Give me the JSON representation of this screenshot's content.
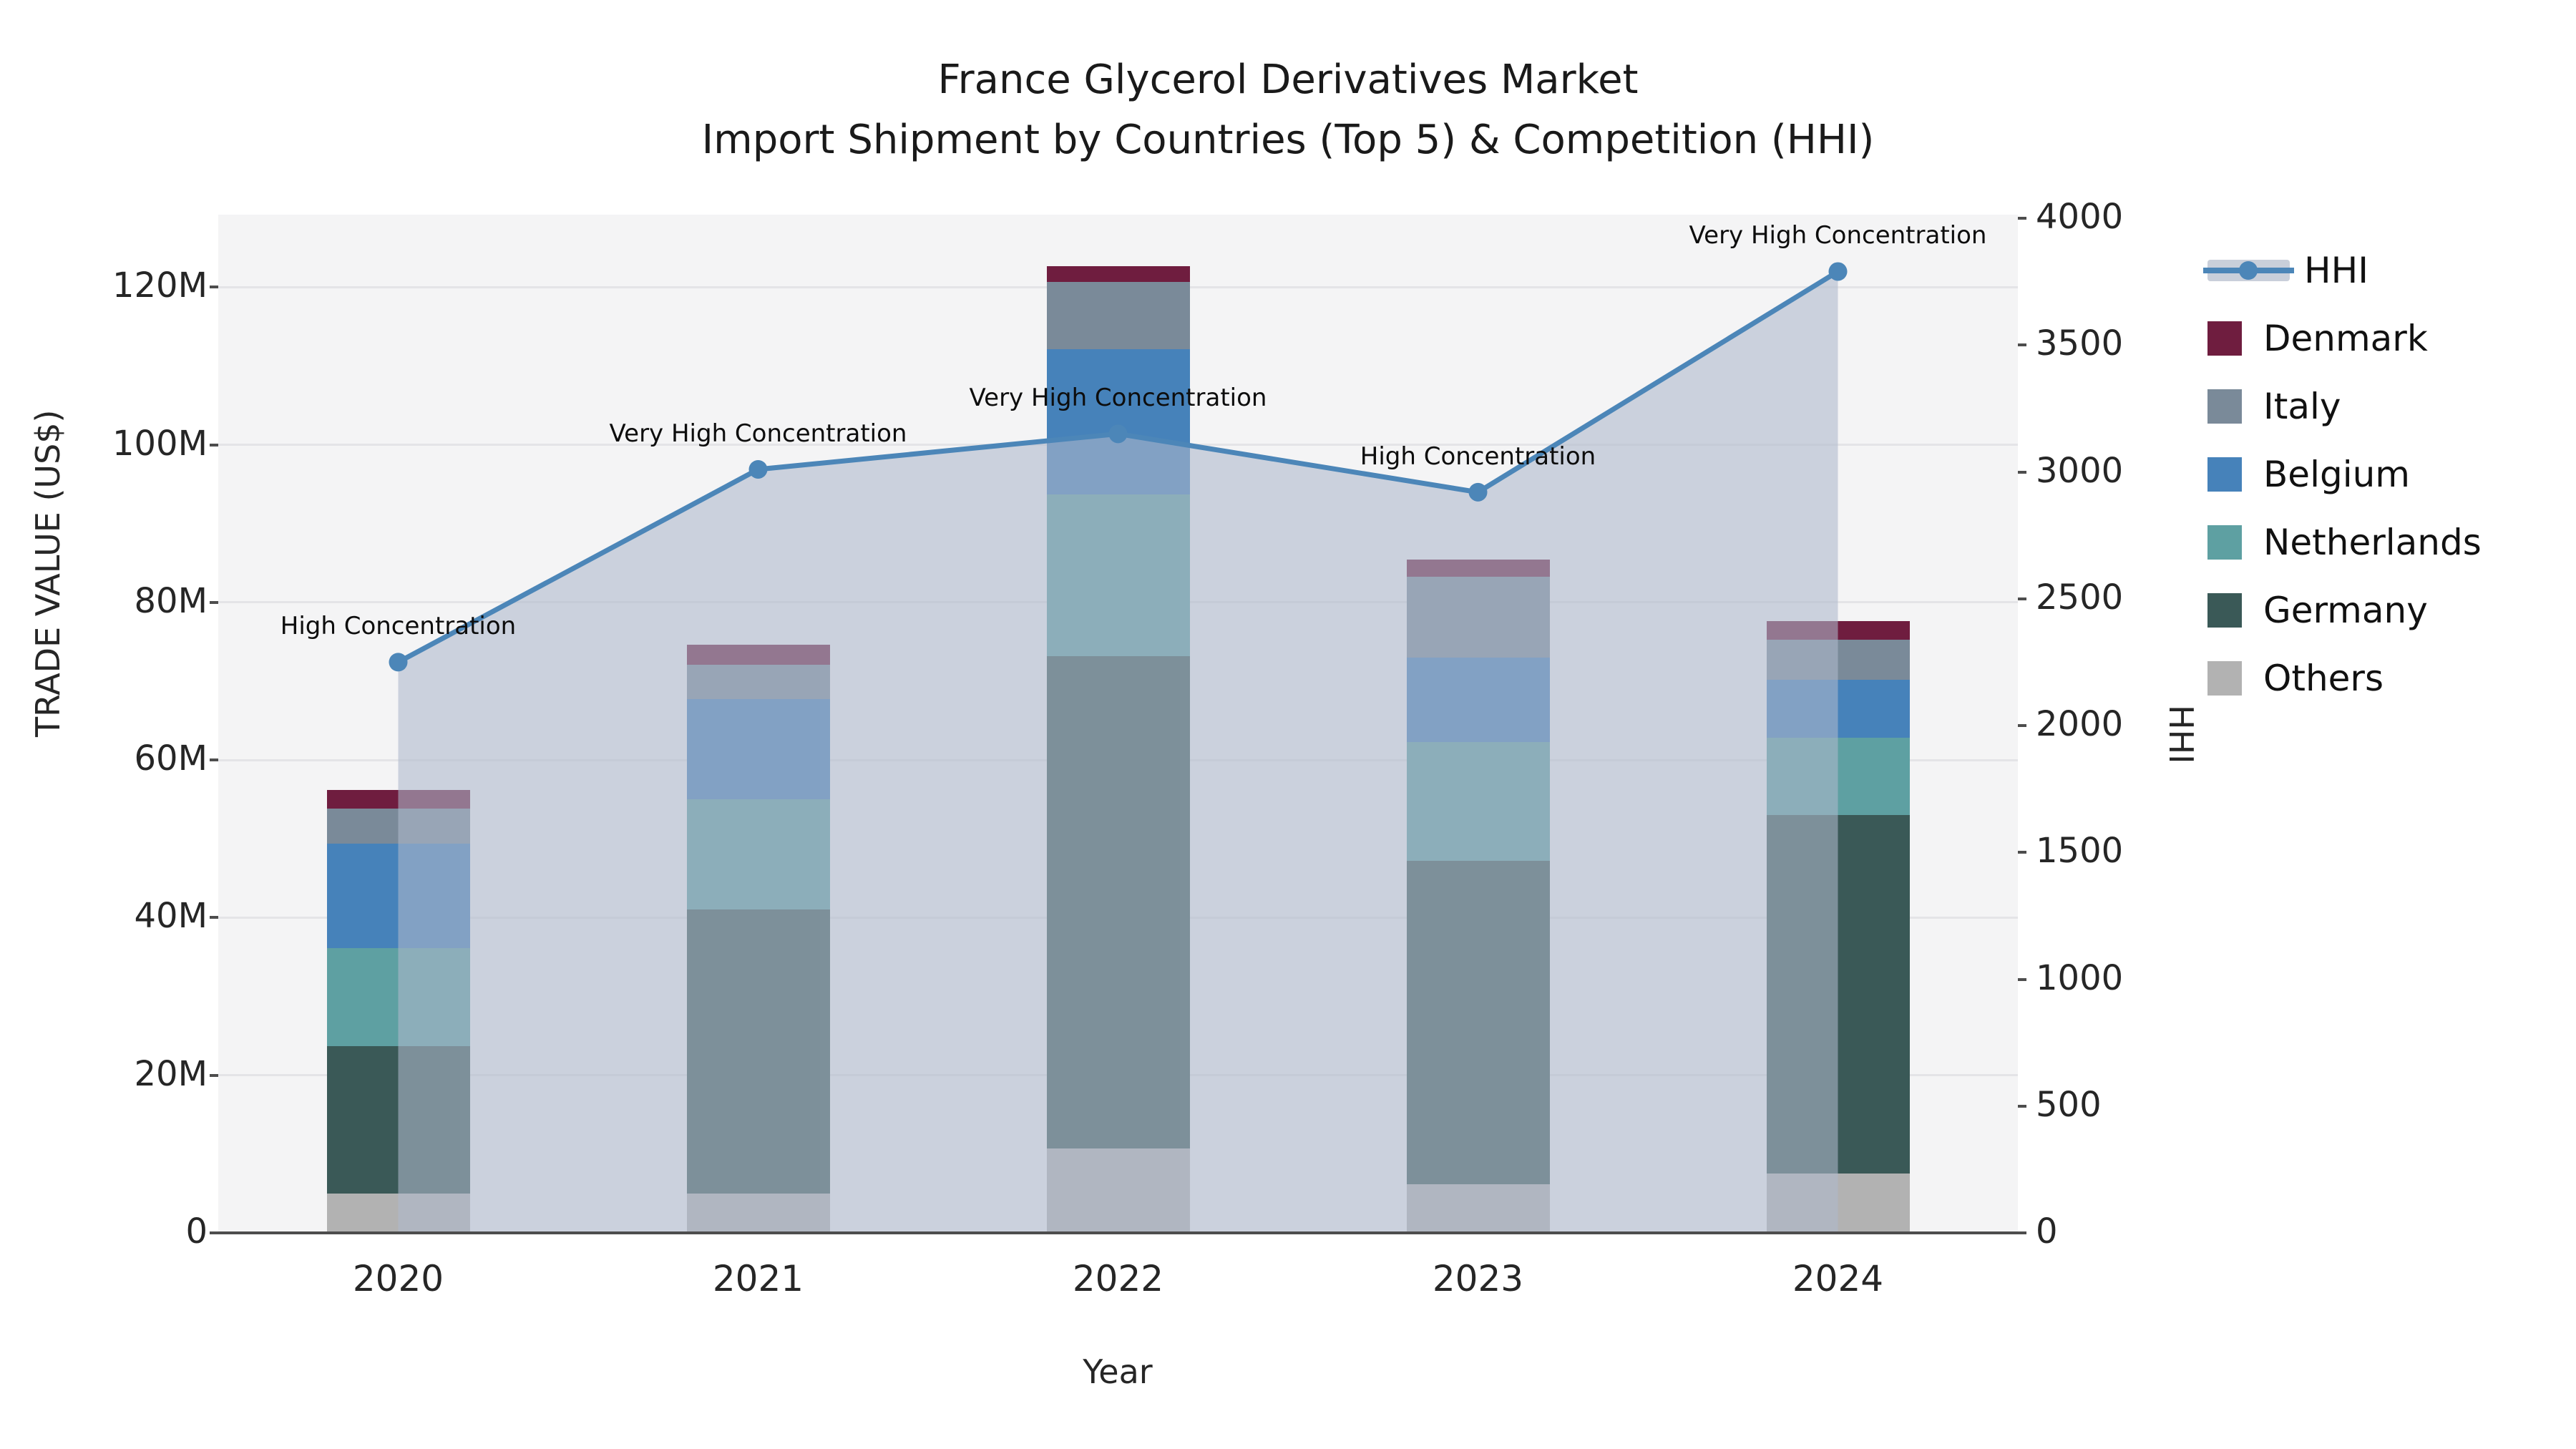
{
  "title": {
    "line1": "France Glycerol Derivatives Market",
    "line2": "Import Shipment by Countries (Top 5) & Competition (HHI)"
  },
  "axes": {
    "x_title": "Year",
    "y_left_title": "TRADE VALUE (US$)",
    "y_right_title": "HHI",
    "y_left_ticks": [
      "0",
      "20M",
      "40M",
      "60M",
      "80M",
      "100M",
      "120M"
    ],
    "y_left_tick_values_millions": [
      0,
      20,
      40,
      60,
      80,
      100,
      120
    ],
    "y_right_ticks": [
      "0",
      "500",
      "1000",
      "1500",
      "2000",
      "2500",
      "3000",
      "3500",
      "4000"
    ],
    "y_right_tick_values": [
      0,
      500,
      1000,
      1500,
      2000,
      2500,
      3000,
      3500,
      4000
    ]
  },
  "chart_data": {
    "type": "bar+line",
    "categories": [
      "2020",
      "2021",
      "2022",
      "2023",
      "2024"
    ],
    "stack_order_bottom_to_top": [
      "Others",
      "Germany",
      "Netherlands",
      "Belgium",
      "Italy",
      "Denmark"
    ],
    "series": [
      {
        "name": "Others",
        "values_millions_usd": [
          5.0,
          5.0,
          10.7,
          6.2,
          7.5
        ]
      },
      {
        "name": "Germany",
        "values_millions_usd": [
          18.7,
          36.0,
          62.5,
          41.0,
          45.5
        ]
      },
      {
        "name": "Netherlands",
        "values_millions_usd": [
          12.4,
          14.0,
          20.5,
          15.1,
          9.8
        ]
      },
      {
        "name": "Belgium",
        "values_millions_usd": [
          13.3,
          12.7,
          18.4,
          10.7,
          7.4
        ]
      },
      {
        "name": "Italy",
        "values_millions_usd": [
          4.4,
          4.4,
          8.6,
          10.3,
          5.1
        ]
      },
      {
        "name": "Denmark",
        "values_millions_usd": [
          2.4,
          2.5,
          2.0,
          2.1,
          2.3
        ]
      }
    ],
    "bar_totals_millions_usd": [
      56.2,
      74.6,
      122.7,
      85.4,
      77.6
    ],
    "line": {
      "name": "HHI",
      "values": [
        2250,
        3010,
        3150,
        2920,
        3790
      ]
    },
    "annotations": [
      "High Concentration",
      "Very High Concentration",
      "Very High Concentration",
      "High Concentration",
      "Very High Concentration"
    ],
    "y_left_range_millions": [
      0,
      129.2
    ],
    "y_right_range": [
      0,
      4014
    ],
    "grid": "horizontal-major-20M",
    "legend_position": "right-outside"
  },
  "legend": {
    "items": [
      {
        "label": "HHI",
        "marker": "line-dot-on-band"
      },
      {
        "label": "Denmark",
        "marker": "square"
      },
      {
        "label": "Italy",
        "marker": "square"
      },
      {
        "label": "Belgium",
        "marker": "square"
      },
      {
        "label": "Netherlands",
        "marker": "square"
      },
      {
        "label": "Germany",
        "marker": "square"
      },
      {
        "label": "Others",
        "marker": "square"
      }
    ]
  },
  "colors": {
    "Denmark": "#6f1d3f",
    "Italy": "#7a8a99",
    "Belgium": "#4682ba",
    "Netherlands": "#5ea0a2",
    "Germany": "#3a5957",
    "Others": "#b2b2b2",
    "hhi_line": "#4c86b8",
    "hhi_area_fill": "rgba(174,184,203,0.58)",
    "plot_background": "#f4f4f5",
    "gridline": "#e4e4e7",
    "axis_line": "#4d4d4d",
    "text": "#262626"
  }
}
